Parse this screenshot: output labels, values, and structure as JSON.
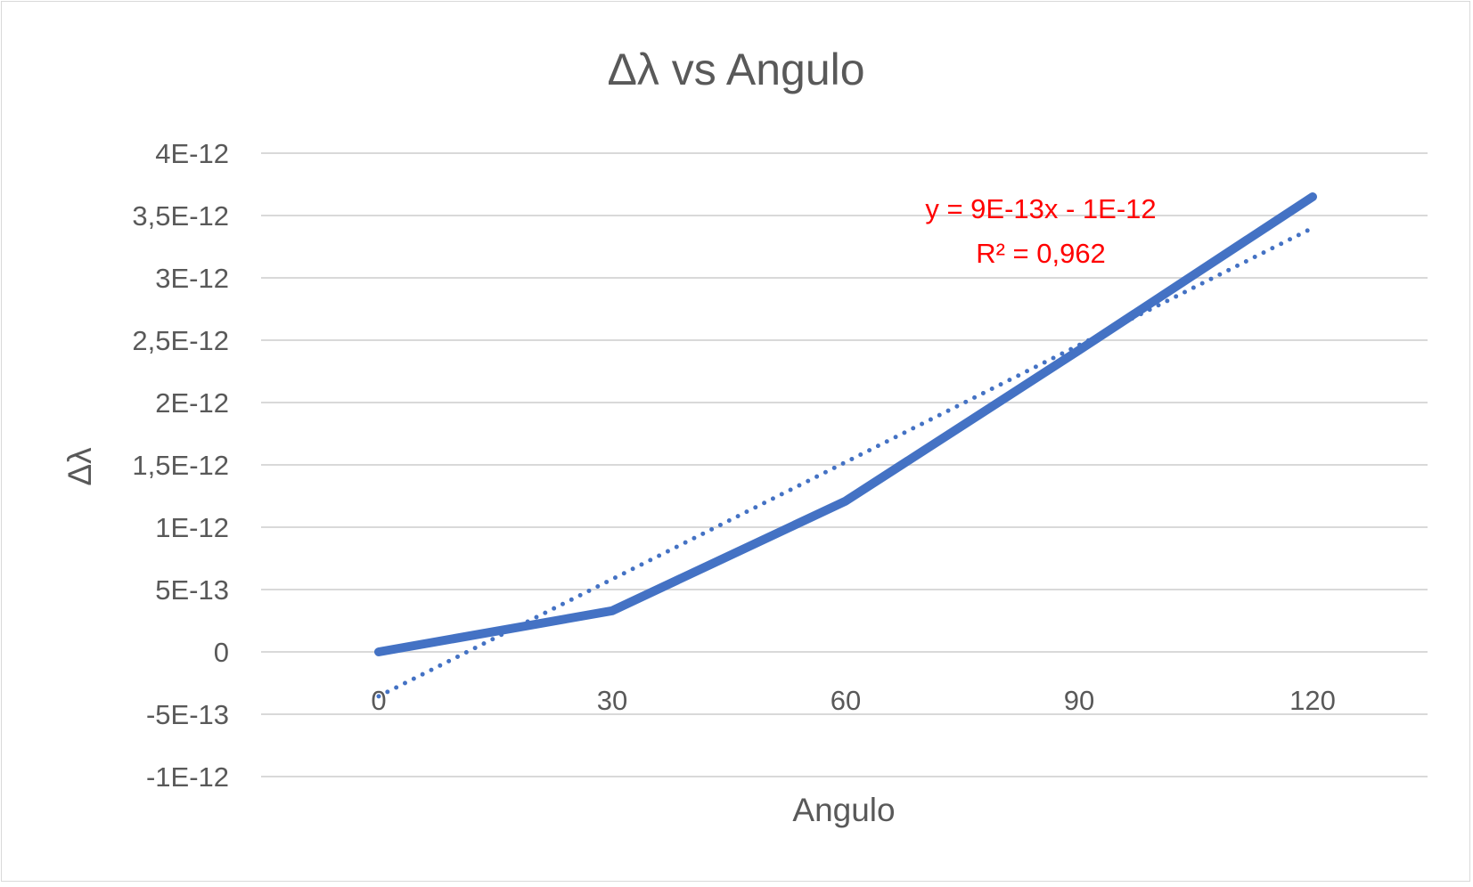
{
  "chart_data": {
    "type": "line",
    "title": "Δλ vs Angulo",
    "xlabel": "Angulo",
    "ylabel": "Δλ",
    "categories": [
      "0",
      "30",
      "60",
      "90",
      "120"
    ],
    "series": [
      {
        "values": [
          0,
          3.3e-13,
          1.21e-12,
          2.42e-12,
          3.65e-12
        ]
      }
    ],
    "trendline": {
      "type": "linear",
      "equation": "y = 9E-13x - 1E-12",
      "r_squared": "R² = 0,962"
    },
    "ylim": [
      -1e-12,
      4e-12
    ],
    "yticks": [
      {
        "value": 4e-12,
        "label": "4E-12"
      },
      {
        "value": 3.5e-12,
        "label": "3,5E-12"
      },
      {
        "value": 3e-12,
        "label": "3E-12"
      },
      {
        "value": 2.5e-12,
        "label": "2,5E-12"
      },
      {
        "value": 2e-12,
        "label": "2E-12"
      },
      {
        "value": 1.5e-12,
        "label": "1,5E-12"
      },
      {
        "value": 1e-12,
        "label": "1E-12"
      },
      {
        "value": 5e-13,
        "label": "5E-13"
      },
      {
        "value": 0,
        "label": "0"
      },
      {
        "value": -5e-13,
        "label": "-5E-13"
      },
      {
        "value": -1e-12,
        "label": "-1E-12"
      }
    ],
    "grid": true,
    "legend": "none",
    "colors": {
      "series": "#4472c4",
      "trendline": "#4472c4",
      "equation": "#ff0000",
      "text": "#595959",
      "grid": "#d9d9d9"
    }
  }
}
